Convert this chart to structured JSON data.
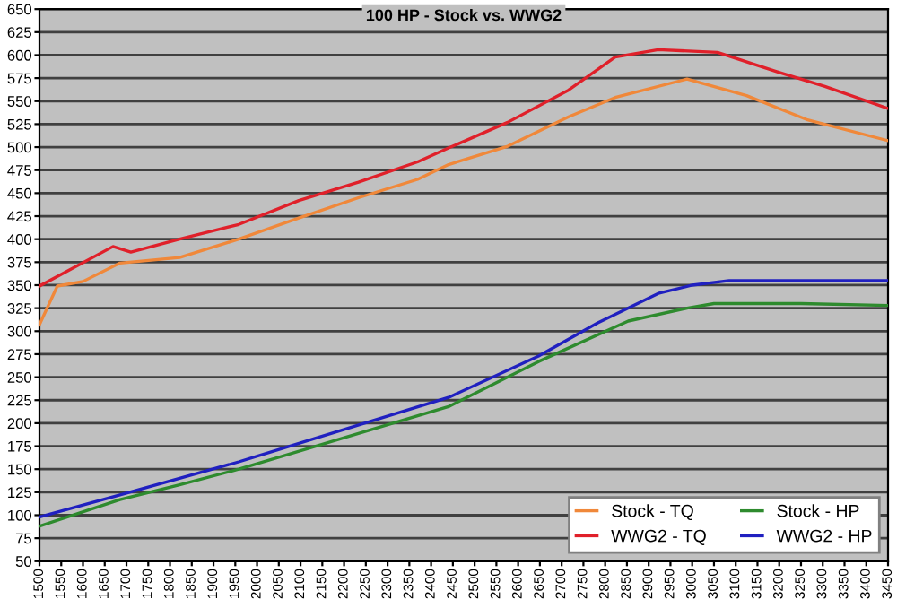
{
  "chart_data": {
    "type": "line",
    "title": "100 HP - Stock vs. WWG2",
    "xlim": [
      1500,
      3450
    ],
    "xticks": [
      1500,
      1550,
      1600,
      1650,
      1700,
      1750,
      1800,
      1850,
      1900,
      1950,
      2000,
      2050,
      2100,
      2150,
      2200,
      2250,
      2300,
      2350,
      2400,
      2450,
      2500,
      2550,
      2600,
      2650,
      2700,
      2750,
      2800,
      2850,
      2900,
      2950,
      3000,
      3050,
      3100,
      3150,
      3200,
      3250,
      3300,
      3350,
      3400,
      3450
    ],
    "ylim": [
      50,
      650
    ],
    "yticks": [
      50,
      75,
      100,
      125,
      150,
      175,
      200,
      225,
      250,
      275,
      300,
      325,
      350,
      375,
      400,
      425,
      450,
      475,
      500,
      525,
      550,
      575,
      600,
      625,
      650
    ],
    "grid": "y",
    "legend": "bottom right",
    "line_style": "solid",
    "marker": "none",
    "series": [
      {
        "name": "Stock - TQ",
        "color": "#f0883a",
        "x": [
          1500,
          1541,
          1600,
          1685,
          1822,
          1958,
          2096,
          2233,
          2369,
          2440,
          2576,
          2716,
          2823,
          2988,
          3125,
          3263,
          3450
        ],
        "values": [
          307,
          349,
          354,
          374,
          380,
          400,
          423,
          445,
          465,
          481,
          501,
          533,
          554,
          574,
          556,
          530,
          507
        ]
      },
      {
        "name": "WWG2 - TQ",
        "color": "#e0202a",
        "x": [
          1500,
          1669,
          1710,
          1822,
          1958,
          2096,
          2233,
          2369,
          2440,
          2576,
          2716,
          2823,
          2922,
          3058,
          3194,
          3305,
          3450
        ],
        "values": [
          349,
          392,
          386,
          400,
          416,
          442,
          462,
          484,
          499,
          527,
          562,
          598,
          606,
          603,
          582,
          566,
          542
        ]
      },
      {
        "name": "Stock - HP",
        "color": "#2e8b2e",
        "x": [
          1500,
          1685,
          1822,
          1958,
          2440,
          2647,
          2853,
          2988,
          3050,
          3250,
          3450
        ],
        "values": [
          88,
          117,
          133,
          150,
          218,
          267,
          311,
          325,
          330,
          330,
          328
        ]
      },
      {
        "name": "WWG2 - HP",
        "color": "#2020c0",
        "x": [
          1500,
          1685,
          1822,
          1958,
          2440,
          2647,
          2783,
          2922,
          3000,
          3085,
          3450
        ],
        "values": [
          98,
          122,
          140,
          158,
          228,
          273,
          309,
          341,
          350,
          355,
          355
        ]
      }
    ]
  }
}
